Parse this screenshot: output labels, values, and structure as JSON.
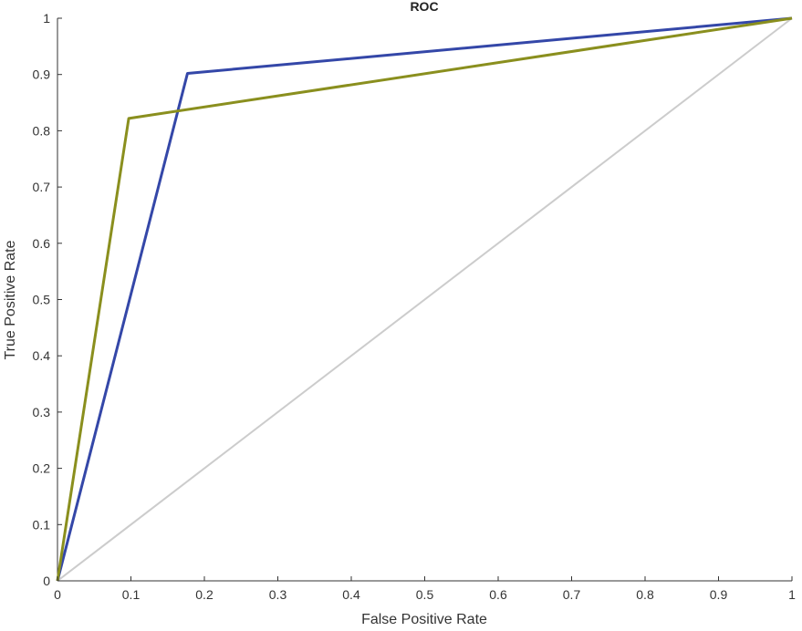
{
  "chart_data": {
    "type": "line",
    "title": "ROC",
    "xlabel": "False Positive Rate",
    "ylabel": "True Positive Rate",
    "xlim": [
      0,
      1
    ],
    "ylim": [
      0,
      1
    ],
    "xticks": [
      "0",
      "0.1",
      "0.2",
      "0.3",
      "0.4",
      "0.5",
      "0.6",
      "0.7",
      "0.8",
      "0.9",
      "1"
    ],
    "yticks": [
      "0",
      "0.1",
      "0.2",
      "0.3",
      "0.4",
      "0.5",
      "0.6",
      "0.7",
      "0.8",
      "0.9",
      "1"
    ],
    "grid": false,
    "legend": "none",
    "series": [
      {
        "color": "#3447a8",
        "x": [
          0,
          0.177,
          1
        ],
        "y": [
          0,
          0.902,
          1
        ]
      },
      {
        "color": "#8a8f1e",
        "x": [
          0,
          0.097,
          1
        ],
        "y": [
          0,
          0.822,
          1
        ]
      },
      {
        "color": "#cccccc",
        "x": [
          0,
          1
        ],
        "y": [
          0,
          1
        ]
      }
    ]
  }
}
